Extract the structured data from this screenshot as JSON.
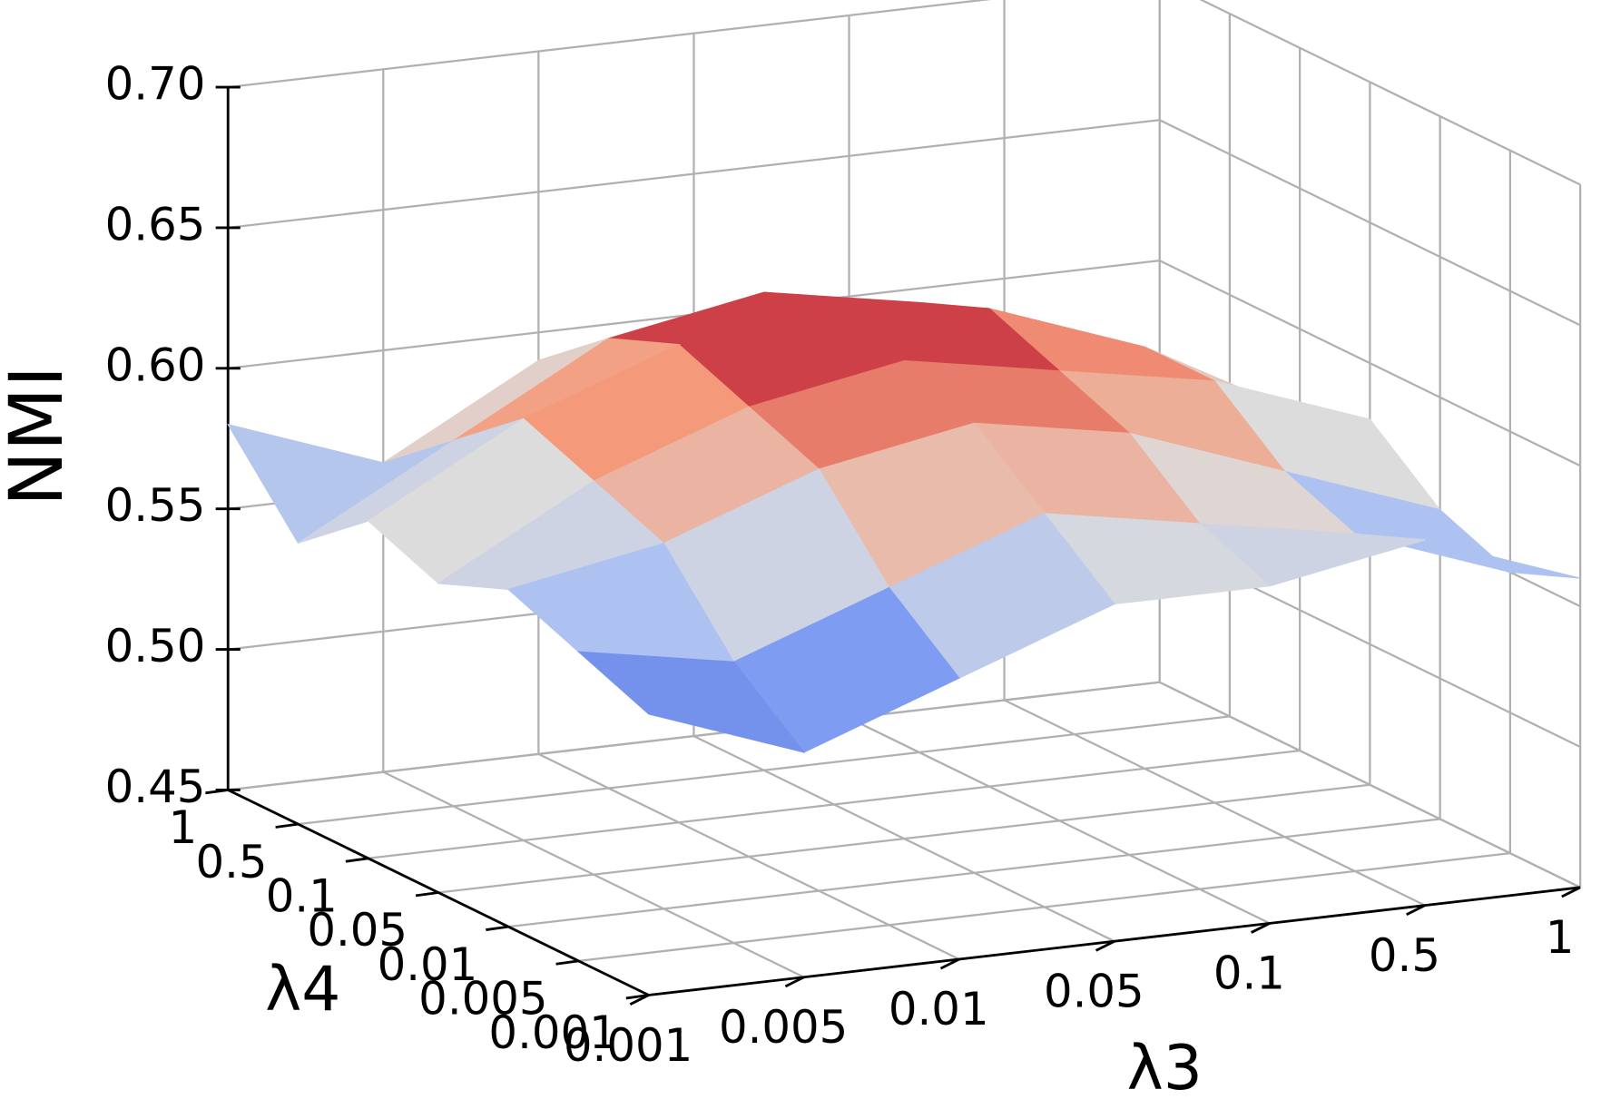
{
  "chart_data": {
    "type": "surface",
    "x_label": "λ3",
    "y_label": "λ4",
    "z_label": "NMI",
    "x": [
      "0.001",
      "0.005",
      "0.01",
      "0.05",
      "0.1",
      "0.5",
      "1"
    ],
    "y": [
      "0.001",
      "0.005",
      "0.01",
      "0.05",
      "0.1",
      "0.5",
      "1"
    ],
    "z": [
      [
        0.55,
        0.53,
        0.55,
        0.57,
        0.57,
        0.58,
        0.56
      ],
      [
        0.56,
        0.55,
        0.57,
        0.59,
        0.58,
        0.57,
        0.55
      ],
      [
        0.57,
        0.58,
        0.6,
        0.61,
        0.6,
        0.58,
        0.56
      ],
      [
        0.56,
        0.59,
        0.61,
        0.62,
        0.61,
        0.6,
        0.58
      ],
      [
        0.57,
        0.6,
        0.62,
        0.63,
        0.62,
        0.6,
        0.57
      ],
      [
        0.55,
        0.58,
        0.61,
        0.62,
        0.61,
        0.59,
        0.56
      ],
      [
        0.58,
        0.56,
        0.59,
        0.6,
        0.58,
        0.57,
        0.55
      ]
    ],
    "zlim": [
      0.45,
      0.7
    ],
    "zticks": [
      {
        "value": 0.7,
        "label": "0.70"
      },
      0.65,
      {
        "value": 0.6,
        "label": "0.60"
      },
      0.55,
      {
        "value": 0.5,
        "label": "0.50"
      },
      0.45
    ],
    "colormap": "coolwarm",
    "grid": true
  }
}
